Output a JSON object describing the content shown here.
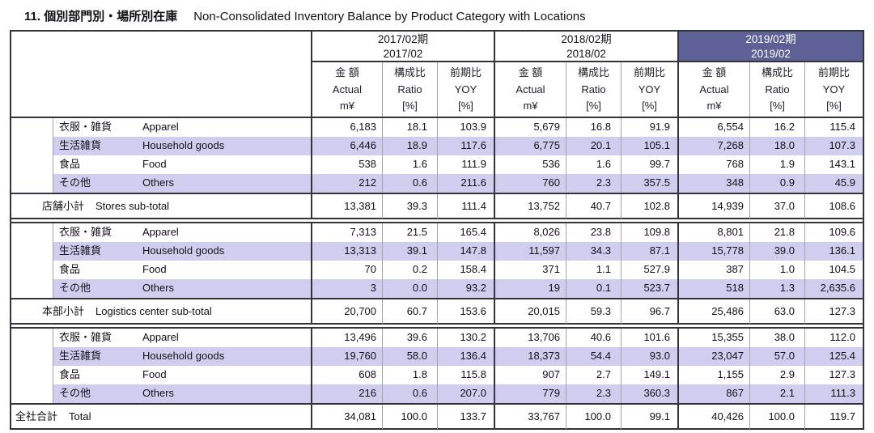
{
  "title": {
    "jp": "11. 個別部門別・場所別在庫",
    "en": "Non-Consolidated Inventory Balance by Product Category with Locations"
  },
  "colors": {
    "period_highlight_bg": "#5e6195",
    "period_highlight_text": "#ffffff",
    "row_highlight_bg": "#cfceef",
    "border_dark": "#33333c",
    "border_light": "#a3a3ad"
  },
  "periods": [
    {
      "line1": "2017/02期",
      "line2": "2017/02",
      "highlight": false
    },
    {
      "line1": "2018/02期",
      "line2": "2018/02",
      "highlight": false
    },
    {
      "line1": "2019/02期",
      "line2": "2019/02",
      "highlight": true
    }
  ],
  "metrics": [
    {
      "jp": "金 額",
      "en": "Actual",
      "unit": "m¥"
    },
    {
      "jp": "構成比",
      "en": "Ratio",
      "unit": "[%]"
    },
    {
      "jp": "前期比",
      "en": "YOY",
      "unit": "[%]"
    }
  ],
  "sections": [
    {
      "rows": [
        {
          "jp": "衣服・雑貨",
          "en": "Apparel",
          "highlight": false,
          "values": [
            "6,183",
            "18.1",
            "103.9",
            "5,679",
            "16.8",
            "91.9",
            "6,554",
            "16.2",
            "115.4"
          ]
        },
        {
          "jp": "生活雑貨",
          "en": "Household goods",
          "highlight": true,
          "values": [
            "6,446",
            "18.9",
            "117.6",
            "6,775",
            "20.1",
            "105.1",
            "7,268",
            "18.0",
            "107.3"
          ]
        },
        {
          "jp": "食品",
          "en": "Food",
          "highlight": false,
          "values": [
            "538",
            "1.6",
            "111.9",
            "536",
            "1.6",
            "99.7",
            "768",
            "1.9",
            "143.1"
          ]
        },
        {
          "jp": "その他",
          "en": "Others",
          "highlight": true,
          "values": [
            "212",
            "0.6",
            "211.6",
            "760",
            "2.3",
            "357.5",
            "348",
            "0.9",
            "45.9"
          ]
        }
      ],
      "subtotal": {
        "jp": "店舗小計",
        "en": "Stores sub-total",
        "values": [
          "13,381",
          "39.3",
          "111.4",
          "13,752",
          "40.7",
          "102.8",
          "14,939",
          "37.0",
          "108.6"
        ]
      }
    },
    {
      "rows": [
        {
          "jp": "衣服・雑貨",
          "en": "Apparel",
          "highlight": false,
          "values": [
            "7,313",
            "21.5",
            "165.4",
            "8,026",
            "23.8",
            "109.8",
            "8,801",
            "21.8",
            "109.6"
          ]
        },
        {
          "jp": "生活雑貨",
          "en": "Household goods",
          "highlight": true,
          "values": [
            "13,313",
            "39.1",
            "147.8",
            "11,597",
            "34.3",
            "87.1",
            "15,778",
            "39.0",
            "136.1"
          ]
        },
        {
          "jp": "食品",
          "en": "Food",
          "highlight": false,
          "values": [
            "70",
            "0.2",
            "158.4",
            "371",
            "1.1",
            "527.9",
            "387",
            "1.0",
            "104.5"
          ]
        },
        {
          "jp": "その他",
          "en": "Others",
          "highlight": true,
          "values": [
            "3",
            "0.0",
            "93.2",
            "19",
            "0.1",
            "523.7",
            "518",
            "1.3",
            "2,635.6"
          ]
        }
      ],
      "subtotal": {
        "jp": "本部小計",
        "en": "Logistics center sub-total",
        "values": [
          "20,700",
          "60.7",
          "153.6",
          "20,015",
          "59.3",
          "96.7",
          "25,486",
          "63.0",
          "127.3"
        ]
      }
    },
    {
      "rows": [
        {
          "jp": "衣服・雑貨",
          "en": "Apparel",
          "highlight": false,
          "values": [
            "13,496",
            "39.6",
            "130.2",
            "13,706",
            "40.6",
            "101.6",
            "15,355",
            "38.0",
            "112.0"
          ]
        },
        {
          "jp": "生活雑貨",
          "en": "Household goods",
          "highlight": true,
          "values": [
            "19,760",
            "58.0",
            "136.4",
            "18,373",
            "54.4",
            "93.0",
            "23,047",
            "57.0",
            "125.4"
          ]
        },
        {
          "jp": "食品",
          "en": "Food",
          "highlight": false,
          "values": [
            "608",
            "1.8",
            "115.8",
            "907",
            "2.7",
            "149.1",
            "1,155",
            "2.9",
            "127.3"
          ]
        },
        {
          "jp": "その他",
          "en": "Others",
          "highlight": true,
          "values": [
            "216",
            "0.6",
            "207.0",
            "779",
            "2.3",
            "360.3",
            "867",
            "2.1",
            "111.3"
          ]
        }
      ],
      "subtotal": {
        "jp": "全社合計",
        "en": "Total",
        "values": [
          "34,081",
          "100.0",
          "133.7",
          "33,767",
          "100.0",
          "99.1",
          "40,426",
          "100.0",
          "119.7"
        ]
      }
    }
  ]
}
